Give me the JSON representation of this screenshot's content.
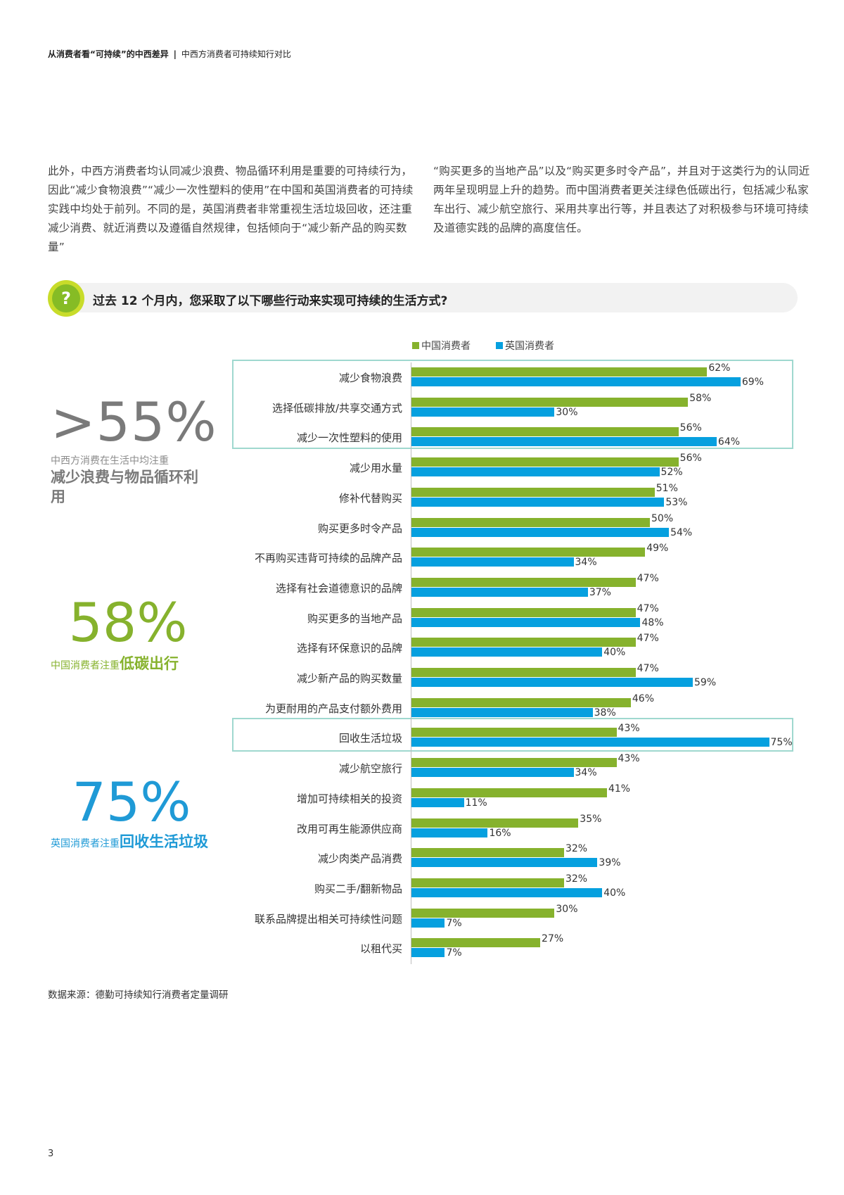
{
  "header": {
    "title_bold": "从消费者看“可持续”的中西差异",
    "separator": "|",
    "subtitle": "中西方消费者可持续知行对比"
  },
  "intro": {
    "left": "此外，中西方消费者均认同减少浪费、物品循环利用是重要的可持续行为，因此“减少食物浪费”“减少一次性塑料的使用”在中国和英国消费者的可持续实践中均处于前列。不同的是，英国消费者非常重视生活垃圾回收，还注重减少消费、就近消费以及遵循自然规律，包括倾向于“减少新产品的购买数量”",
    "right": "“购买更多的当地产品”以及“购买更多时令产品”，并且对于这类行为的认同近两年呈现明显上升的趋势。而中国消费者更关注绿色低碳出行，包括减少私家车出行、减少航空旅行、采用共享出行等，并且表达了对积极参与环境可持续及道德实践的品牌的高度信任。"
  },
  "question": {
    "icon": "?",
    "text": "过去 12 个月内，您采取了以下哪些行动来实现可持续的生活方式?"
  },
  "stats": [
    {
      "big": ">55%",
      "small": "中西方消费在生活中均注重",
      "strong": "减少浪费与物品循环利用",
      "color": "#7a7a7a"
    },
    {
      "big": "58%",
      "small": "中国消费者注重",
      "strong": "低碳出行",
      "color": "#86b22d"
    },
    {
      "big": "75%",
      "small": "英国消费者注重",
      "strong": "回收生活垃圾",
      "color": "#1f9ad6"
    }
  ],
  "source": "数据来源：德勤可持续知行消费者定量调研",
  "page_number": "3",
  "chart_data": {
    "type": "bar",
    "orientation": "horizontal",
    "title": "过去 12 个月内，您采取了以下哪些行动来实现可持续的生活方式?",
    "xlabel": "",
    "ylabel": "",
    "xlim": [
      0,
      80
    ],
    "grid": false,
    "legend_position": "top",
    "colors": {
      "cn": "#86b22d",
      "uk": "#06a0df"
    },
    "categories": [
      "减少食物浪费",
      "选择低碳排放/共享交通方式",
      "减少一次性塑料的使用",
      "减少用水量",
      "修补代替购买",
      "购买更多时令产品",
      "不再购买违背可持续的品牌产品",
      "选择有社会道德意识的品牌",
      "购买更多的当地产品",
      "选择有环保意识的品牌",
      "减少新产品的购买数量",
      "为更耐用的产品支付额外费用",
      "回收生活垃圾",
      "减少航空旅行",
      "增加可持续相关的投资",
      "改用可再生能源供应商",
      "减少肉类产品消费",
      "购买二手/翻新物品",
      "联系品牌提出相关可持续性问题",
      "以租代买"
    ],
    "series": [
      {
        "name": "中国消费者",
        "values": [
          62,
          58,
          56,
          56,
          51,
          50,
          49,
          47,
          47,
          47,
          47,
          46,
          43,
          43,
          41,
          35,
          32,
          32,
          30,
          27
        ]
      },
      {
        "name": "英国消费者",
        "values": [
          69,
          30,
          64,
          52,
          53,
          54,
          34,
          37,
          48,
          40,
          59,
          38,
          75,
          34,
          11,
          16,
          39,
          40,
          7,
          7
        ]
      }
    ],
    "labels": {
      "cn": [
        "62%",
        "58%",
        "56%",
        "56%",
        "51%",
        "50%",
        "49%",
        "47%",
        "47%",
        "47%",
        "47%",
        "46%",
        "43%",
        "43%",
        "41%",
        "35%",
        "32%",
        "32%",
        "30%",
        "27%"
      ],
      "uk": [
        "69%",
        "30%",
        "64%",
        "52%",
        "53%",
        "54%",
        "34%",
        "37%",
        "48%",
        "40%",
        "59%",
        "38%",
        "75%",
        "34%",
        "11%",
        "16%",
        "39%",
        "40%",
        "7%",
        "7%"
      ]
    },
    "highlighted_groups": [
      [
        "减少食物浪费",
        "选择低碳排放/共享交通方式",
        "减少一次性塑料的使用"
      ],
      [
        "回收生活垃圾"
      ]
    ]
  }
}
